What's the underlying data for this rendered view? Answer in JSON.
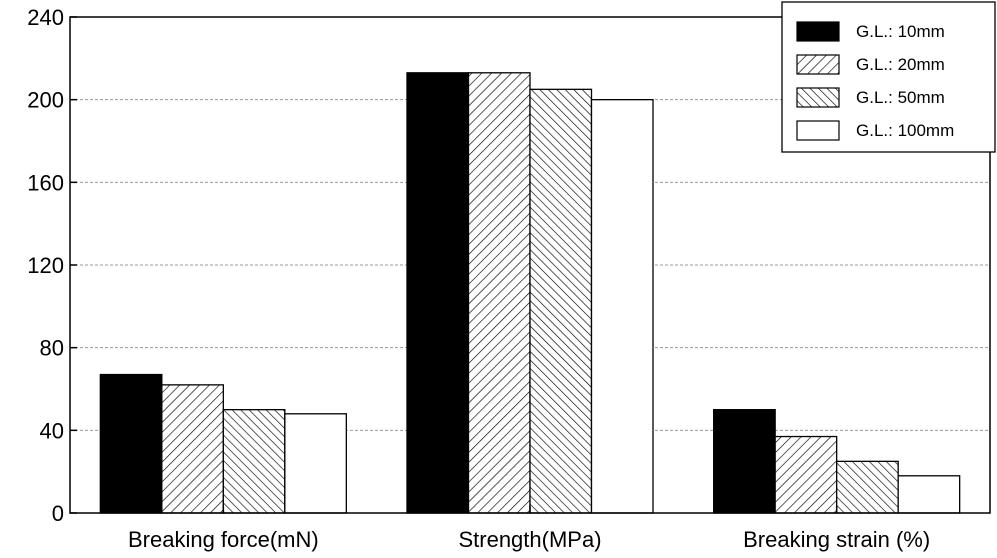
{
  "chart_data": {
    "type": "bar",
    "categories": [
      "Breaking force(mN)",
      "Strength(MPa)",
      "Breaking strain (%)"
    ],
    "series": [
      {
        "name": "G.L.: 10mm",
        "values": [
          67,
          213,
          50
        ],
        "fill": "solid",
        "color": "#000000"
      },
      {
        "name": "G.L.: 20mm",
        "values": [
          62,
          213,
          37
        ],
        "fill": "diagonal-right",
        "color": "#000000"
      },
      {
        "name": "G.L.: 50mm",
        "values": [
          50,
          205,
          25
        ],
        "fill": "diagonal-left",
        "color": "#000000"
      },
      {
        "name": "G.L.: 100mm",
        "values": [
          48,
          200,
          18
        ],
        "fill": "none",
        "color": "#ffffff"
      }
    ],
    "ylim": [
      0,
      240
    ],
    "yticks": [
      0,
      40,
      80,
      120,
      160,
      200,
      240
    ],
    "title": "",
    "xlabel": "",
    "ylabel": "",
    "grid": true,
    "legend": "top-right"
  }
}
